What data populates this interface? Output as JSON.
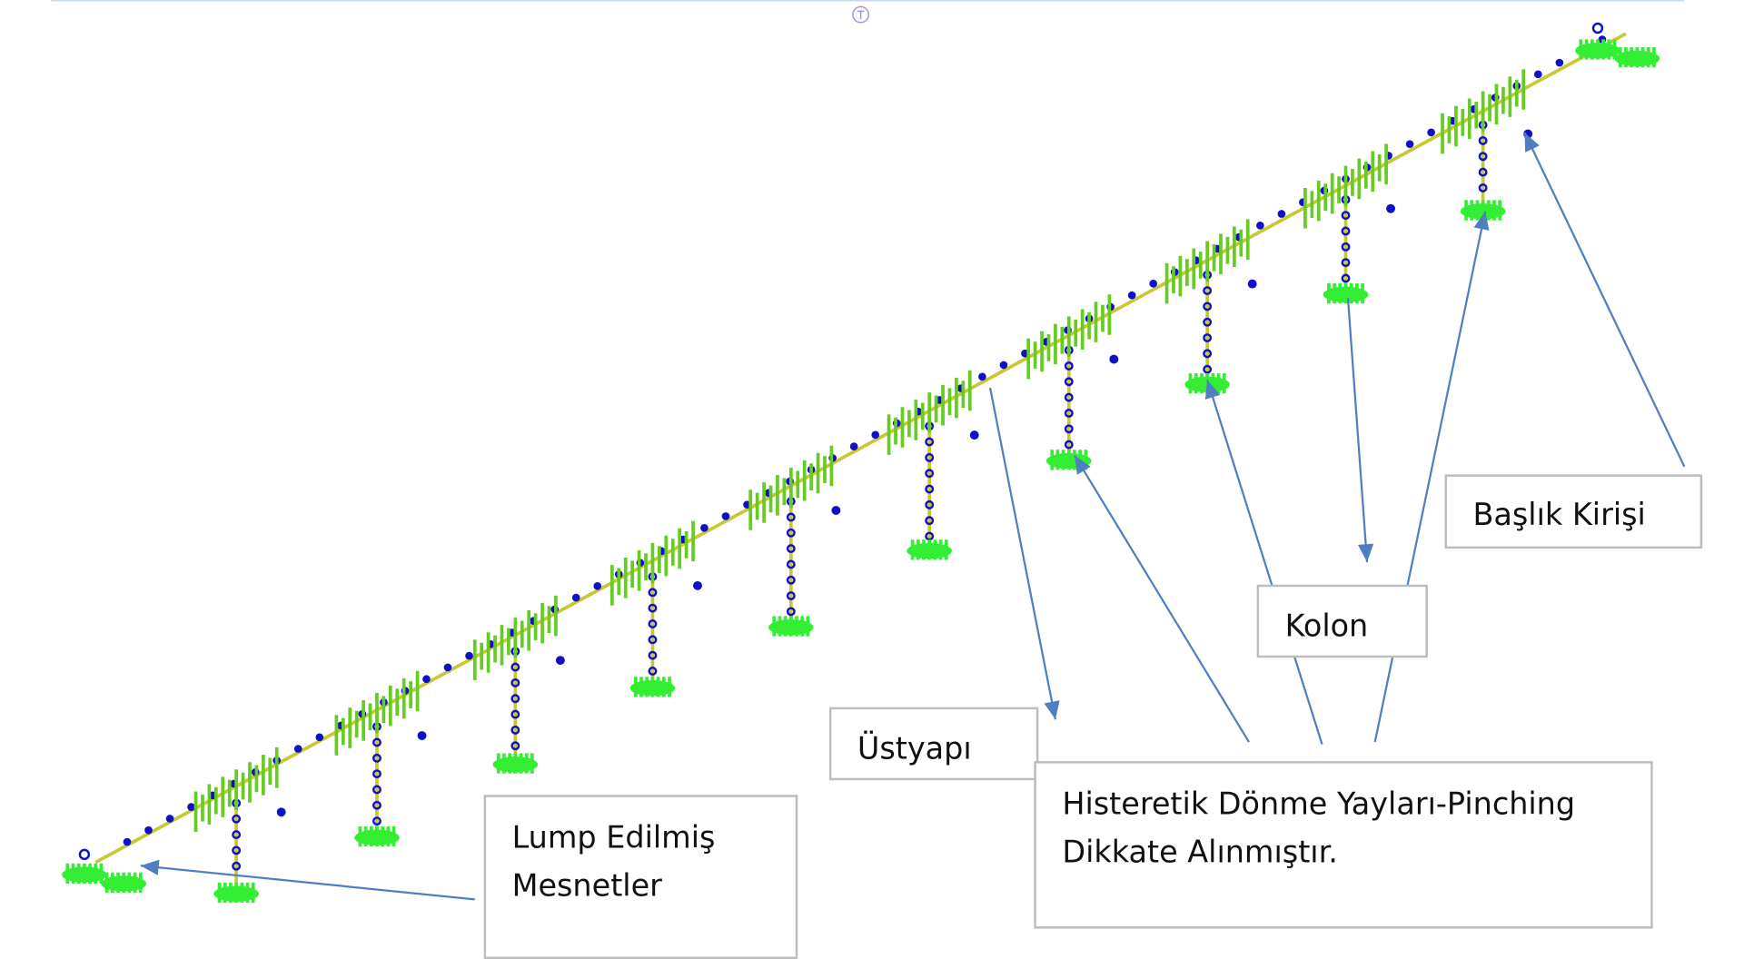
{
  "colors": {
    "deck": "#c8c832",
    "node": "#1010c8",
    "spring": "#66cc22",
    "support": "#33ee33",
    "arrow": "#4f7fc0",
    "box_border": "#bdbdbd"
  },
  "top_icon": "compass-icon",
  "labels": {
    "baslik": "Başlık Kirişi",
    "kolon": "Kolon",
    "ustyapi": "Üstyapı",
    "histeretik_line1": "Histeretik Dönme Yayları-Pinching",
    "histeretik_line2": "Dikkate Alınmıştır.",
    "lump_line1": "Lump Edilmiş",
    "lump_line2": "Mesnetler"
  }
}
